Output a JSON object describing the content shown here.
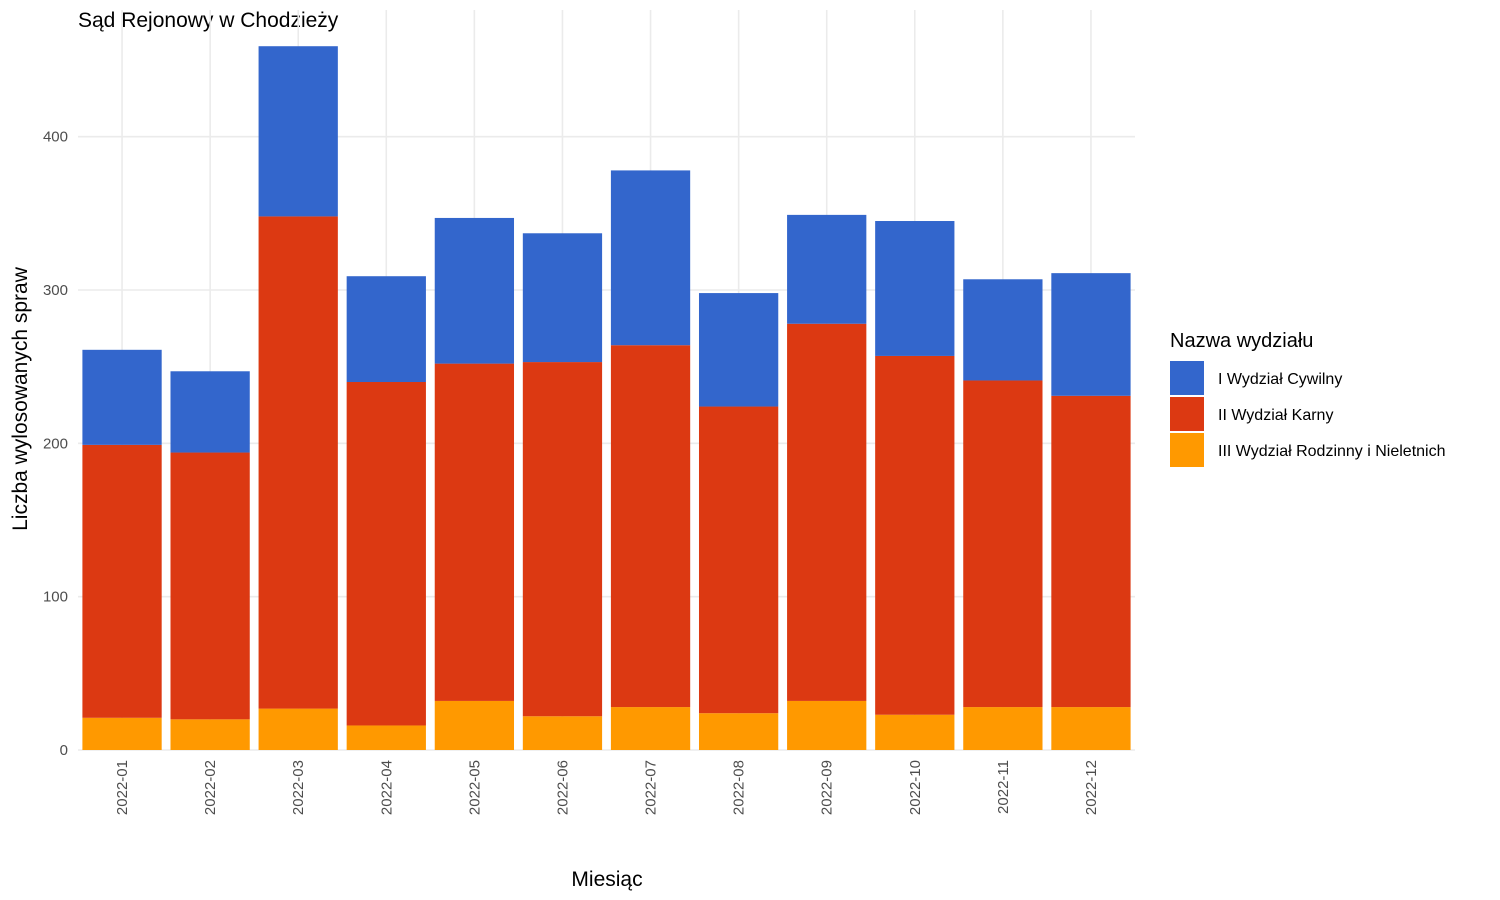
{
  "chart_data": {
    "type": "bar",
    "stacked": true,
    "title": "Sąd Rejonowy w Chodzieży",
    "xlabel": "Miesiąc",
    "ylabel": "Liczba wylosowanych spraw",
    "ylim": [
      0,
      470
    ],
    "yticks": [
      0,
      100,
      200,
      300,
      400
    ],
    "grid": true,
    "legend_position": "right",
    "legend_title": "Nazwa wydziału",
    "categories": [
      "2022-01",
      "2022-02",
      "2022-03",
      "2022-04",
      "2022-05",
      "2022-06",
      "2022-07",
      "2022-08",
      "2022-09",
      "2022-10",
      "2022-11",
      "2022-12"
    ],
    "series": [
      {
        "name": "III Wydział Rodzinny i Nieletnich",
        "color": "#ff9900",
        "values": [
          21,
          20,
          27,
          16,
          32,
          22,
          28,
          24,
          32,
          23,
          28,
          28
        ]
      },
      {
        "name": "II Wydział Karny",
        "color": "#dc3912",
        "values": [
          178,
          174,
          321,
          224,
          220,
          231,
          236,
          200,
          246,
          234,
          213,
          203
        ]
      },
      {
        "name": "I Wydział Cywilny",
        "color": "#3366cc",
        "values": [
          62,
          53,
          111,
          69,
          95,
          84,
          114,
          74,
          71,
          88,
          66,
          80
        ]
      }
    ],
    "legend_order": [
      "I Wydział Cywilny",
      "II Wydział Karny",
      "III Wydział Rodzinny i Nieletnich"
    ]
  }
}
